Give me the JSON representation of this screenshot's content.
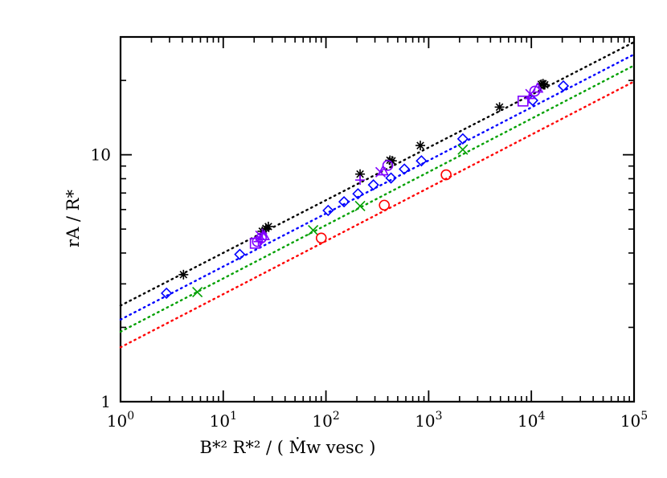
{
  "chart_data": {
    "type": "scatter",
    "title": "",
    "xlabel": "B*² R*² / ( Ṁw vesc )",
    "ylabel": "rA / R*",
    "xscale": "log",
    "yscale": "log",
    "xlim": [
      1,
      100000
    ],
    "ylim": [
      1,
      30
    ],
    "grid": false,
    "legend": "none",
    "x_ticks": [
      {
        "value": 1,
        "mantissa": "10",
        "exp": "0"
      },
      {
        "value": 10,
        "mantissa": "10",
        "exp": "1"
      },
      {
        "value": 100,
        "mantissa": "10",
        "exp": "2"
      },
      {
        "value": 1000,
        "mantissa": "10",
        "exp": "3"
      },
      {
        "value": 10000,
        "mantissa": "10",
        "exp": "4"
      },
      {
        "value": 100000,
        "mantissa": "10",
        "exp": "5"
      }
    ],
    "y_ticks": [
      {
        "value": 1,
        "label": "1"
      },
      {
        "value": 10,
        "label": "10"
      }
    ],
    "fit_lines": [
      {
        "color": "#000000",
        "x": [
          1,
          100000
        ],
        "y": [
          2.45,
          28.6
        ]
      },
      {
        "color": "#0000ff",
        "x": [
          1,
          100000
        ],
        "y": [
          2.15,
          25.5
        ]
      },
      {
        "color": "#00a000",
        "x": [
          1,
          100000
        ],
        "y": [
          1.92,
          23.0
        ]
      },
      {
        "color": "#ff0000",
        "x": [
          1,
          100000
        ],
        "y": [
          1.66,
          19.8
        ]
      }
    ],
    "series": [
      {
        "marker": "asterisk",
        "color": "#000000",
        "points": [
          [
            4.1,
            3.27
          ],
          [
            24,
            4.9
          ],
          [
            26,
            5.03
          ],
          [
            27.5,
            5.12
          ],
          [
            215,
            8.35
          ],
          [
            420,
            9.5
          ],
          [
            440,
            9.45
          ],
          [
            830,
            10.9
          ],
          [
            4900,
            15.6
          ],
          [
            12500,
            19.3
          ],
          [
            13000,
            19.4
          ],
          [
            13500,
            19.2
          ]
        ]
      },
      {
        "marker": "diamond",
        "color": "#0000ff",
        "points": [
          [
            2.8,
            2.75
          ],
          [
            14.5,
            3.95
          ],
          [
            105,
            5.95
          ],
          [
            150,
            6.45
          ],
          [
            205,
            6.95
          ],
          [
            290,
            7.55
          ],
          [
            430,
            8.05
          ],
          [
            580,
            8.75
          ],
          [
            850,
            9.45
          ],
          [
            2150,
            11.6
          ],
          [
            10300,
            16.6
          ],
          [
            20500,
            19.0
          ]
        ]
      },
      {
        "marker": "x",
        "color": "#00a000",
        "points": [
          [
            5.6,
            2.78
          ],
          [
            75,
            4.95
          ],
          [
            215,
            6.2
          ],
          [
            2150,
            10.5
          ]
        ]
      },
      {
        "marker": "circle",
        "color": "#ff0000",
        "points": [
          [
            90,
            4.6
          ],
          [
            370,
            6.25
          ],
          [
            1480,
            8.3
          ]
        ]
      },
      {
        "marker": "square",
        "color": "#8000ff",
        "points": [
          [
            20.5,
            4.38
          ],
          [
            8300,
            16.5
          ]
        ]
      },
      {
        "marker": "plus",
        "color": "#8000ff",
        "points": [
          [
            22,
            4.45
          ],
          [
            24,
            4.8
          ],
          [
            215,
            7.9
          ],
          [
            9500,
            16.9
          ]
        ]
      },
      {
        "marker": "circle",
        "color": "#8000ff",
        "points": [
          [
            21.5,
            4.45
          ],
          [
            23.5,
            4.6
          ],
          [
            400,
            9.05
          ],
          [
            10800,
            18.1
          ]
        ]
      },
      {
        "marker": "triangle",
        "color": "#8000ff",
        "points": [
          [
            25,
            4.7
          ],
          [
            360,
            8.6
          ],
          [
            11500,
            18.6
          ]
        ]
      },
      {
        "marker": "x",
        "color": "#8000ff",
        "points": [
          [
            23,
            4.7
          ],
          [
            340,
            8.5
          ],
          [
            9800,
            17.6
          ]
        ]
      }
    ]
  }
}
